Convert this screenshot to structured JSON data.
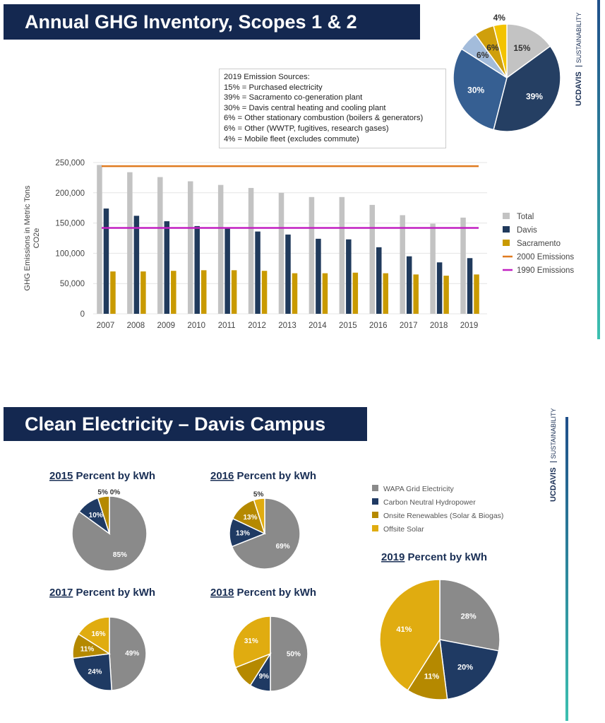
{
  "slide1": {
    "title": "Annual GHG Inventory, Scopes 1 & 2",
    "brand": {
      "logo": "UCDAVIS",
      "unit": "SUSTAINABILITY"
    },
    "sources_box": {
      "heading": "2019 Emission Sources:",
      "lines": [
        "15% = Purchased electricity",
        "39% = Sacramento co-generation plant",
        "30% = Davis central heating and cooling plant",
        "6% = Other stationary combustion (boilers & generators)",
        "6% = Other (WWTP, fugitives, research gases)",
        "4% = Mobile fleet (excludes commute)"
      ]
    }
  },
  "slide2": {
    "title": "Clean Electricity – Davis Campus",
    "brand": {
      "logo": "UCDAVIS",
      "unit": "SUSTAINABILITY"
    }
  },
  "chart_data": [
    {
      "type": "pie",
      "id": "sources2019",
      "values": [
        15,
        39,
        30,
        6,
        6,
        4
      ],
      "labels": [
        "15%",
        "39%",
        "30%",
        "6%",
        "6%",
        "4%"
      ],
      "colors": [
        "#c3c3c3",
        "#253f63",
        "#365f92",
        "#a3bcdb",
        "#cf9f0c",
        "#f3c300"
      ]
    },
    {
      "type": "bar",
      "categories": [
        "2007",
        "2008",
        "2009",
        "2010",
        "2011",
        "2012",
        "2013",
        "2014",
        "2015",
        "2016",
        "2017",
        "2018",
        "2019"
      ],
      "ylabel": "GHG Emissions in Metric Tons CO2e",
      "ylim": [
        0,
        250000
      ],
      "yticks": [
        "0",
        "50,000",
        "100,000",
        "150,000",
        "200,000",
        "250,000"
      ],
      "grid": true,
      "legend_position": "right",
      "series": [
        {
          "name": "Total",
          "color": "#c3c3c3",
          "values": [
            246000,
            234000,
            226000,
            219000,
            213000,
            208000,
            200000,
            193000,
            193000,
            180000,
            163000,
            149000,
            159000
          ]
        },
        {
          "name": "Davis",
          "color": "#203a5c",
          "values": [
            174000,
            162000,
            153000,
            145000,
            141000,
            136000,
            131000,
            124000,
            123000,
            110000,
            95000,
            85000,
            92000
          ]
        },
        {
          "name": "Sacramento",
          "color": "#c99a00",
          "values": [
            70000,
            70000,
            71000,
            72000,
            72000,
            71000,
            67000,
            67000,
            68000,
            67000,
            65000,
            63000,
            65000
          ]
        }
      ],
      "reference_lines": [
        {
          "name": "2000 Emissions",
          "color": "#e07b20",
          "value": 244000
        },
        {
          "name": "1990 Emissions",
          "color": "#c21fc2",
          "value": 142000
        }
      ]
    },
    {
      "type": "pie",
      "id": "kwh",
      "legend": [
        "WAPA Grid Electricity",
        "Carbon Neutral Hydropower",
        "Onsite Renewables (Solar & Biogas)",
        "Offsite Solar"
      ],
      "colors": [
        "#8a8a8a",
        "#1f3a63",
        "#b58900",
        "#e0ac10"
      ],
      "pies": [
        {
          "year": "2015",
          "title": " Percent by kWh",
          "values": [
            85,
            10,
            5,
            0
          ],
          "labels": [
            "85%",
            "10%",
            "5%",
            "0%"
          ]
        },
        {
          "year": "2016",
          "title": " Percent by kWh",
          "values": [
            69,
            13,
            13,
            5
          ],
          "labels": [
            "69%",
            "13%",
            "13%",
            "5%"
          ]
        },
        {
          "year": "2017",
          "title": " Percent by kWh",
          "values": [
            49,
            24,
            11,
            16
          ],
          "labels": [
            "49%",
            "24%",
            "11%",
            "16%"
          ]
        },
        {
          "year": "2018",
          "title": " Percent by kWh",
          "values": [
            50,
            9,
            10,
            31
          ],
          "labels": [
            "50%",
            "9%",
            "",
            "31%"
          ]
        },
        {
          "year": "2019",
          "title": " Percent by kWh",
          "values": [
            28,
            20,
            11,
            41
          ],
          "labels": [
            "28%",
            "20%",
            "11%",
            "41%"
          ]
        }
      ]
    }
  ]
}
